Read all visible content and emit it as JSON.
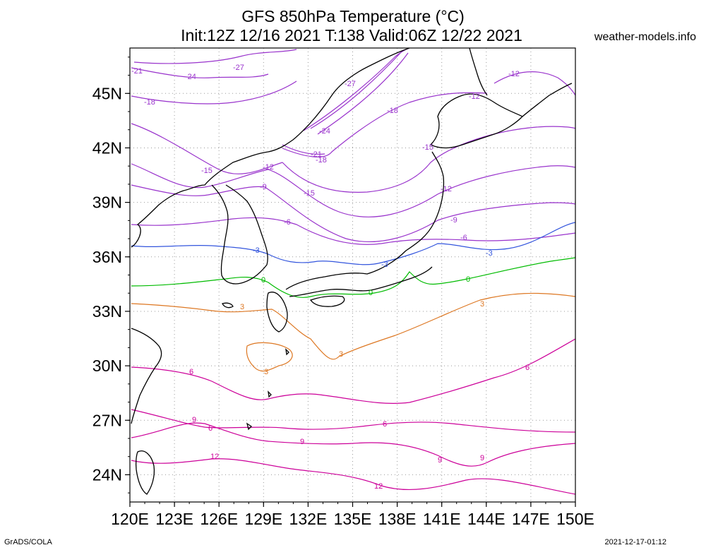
{
  "title_line1": "GFS 850hPa Temperature (°C)",
  "title_line2": "Init:12Z 12/16 2021 T:138 Valid:06Z 12/22 2021",
  "site": "weather-models.info",
  "footer_left": "GrADS/COLA",
  "footer_right": "2021-12-17-01:12",
  "map": {
    "lon_range": [
      120,
      150
    ],
    "lat_range": [
      22.5,
      47.5
    ],
    "lat_ticks": [
      "24N",
      "27N",
      "30N",
      "33N",
      "36N",
      "39N",
      "42N",
      "45N"
    ],
    "lat_tick_values": [
      24,
      27,
      30,
      33,
      36,
      39,
      42,
      45
    ],
    "lon_ticks": [
      "120E",
      "123E",
      "126E",
      "129E",
      "132E",
      "135E",
      "138E",
      "141E",
      "144E",
      "147E",
      "150E"
    ],
    "lon_tick_values": [
      120,
      123,
      126,
      129,
      132,
      135,
      138,
      141,
      144,
      147,
      150
    ],
    "grid": true
  },
  "contour_labels": {
    "m27": "-27",
    "m24": "-24",
    "m21": "-21",
    "m18": "-18",
    "m15": "-15",
    "m12": "-12",
    "m9": "-9",
    "m6": "-6",
    "m3": "-3",
    "z0": "0",
    "p3": "3",
    "p6": "6",
    "p9": "9",
    "p12": "12"
  },
  "colors": {
    "cold": "#9933cc",
    "minus3": "#3355dd",
    "zero": "#00bb00",
    "plus3": "#dd7722",
    "warm": "#cc0099",
    "coast": "#000000",
    "grid": "#999999"
  }
}
